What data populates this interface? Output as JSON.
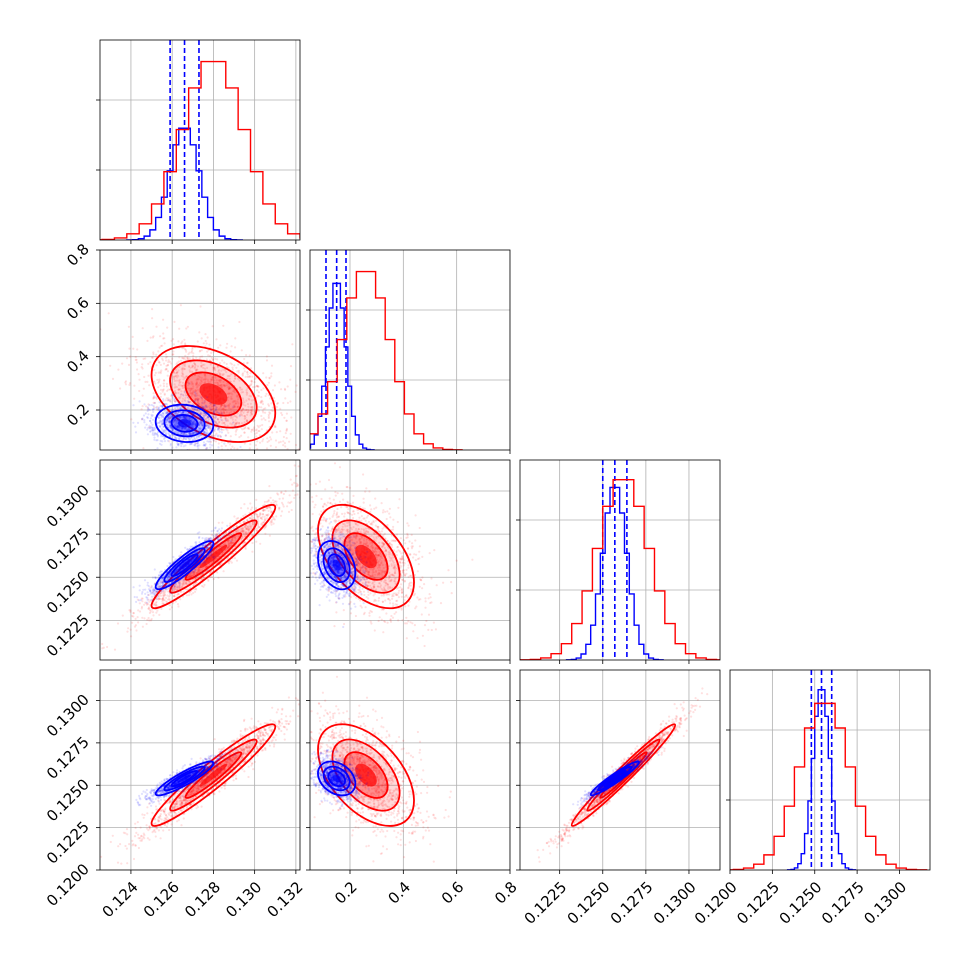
{
  "colors": {
    "series_a": "#0000ff",
    "series_b": "#ff0000"
  },
  "chart_data": {
    "type": "corner",
    "grid": true,
    "parameters": [
      {
        "range": [
          0.1225,
          0.1322
        ],
        "ticks": [
          0.124,
          0.126,
          0.128,
          0.13,
          0.132
        ],
        "tick_labels": [
          "0.124",
          "0.126",
          "0.128",
          "0.130",
          "0.132"
        ]
      },
      {
        "range": [
          0.05,
          0.8
        ],
        "ticks": [
          0.2,
          0.4,
          0.6,
          0.8
        ],
        "tick_labels": [
          "0.2",
          "0.4",
          "0.6",
          "0.8"
        ]
      },
      {
        "range": [
          0.1202,
          0.1318
        ],
        "ticks": [
          0.1225,
          0.125,
          0.1275,
          0.13
        ],
        "tick_labels": [
          "0.1225",
          "0.1250",
          "0.1275",
          "0.1300"
        ]
      },
      {
        "range": [
          0.12,
          0.1318
        ],
        "ticks": [
          0.12,
          0.1225,
          0.125,
          0.1275,
          0.13
        ],
        "tick_labels": [
          "0.1200",
          "0.1225",
          "0.1250",
          "0.1275",
          "0.1300"
        ]
      }
    ],
    "series": [
      {
        "color": "#0000ff",
        "mean": [
          0.1266,
          0.15,
          0.1257,
          0.1254
        ],
        "std": [
          0.0007,
          0.035,
          0.0007,
          0.0005
        ],
        "corr": [
          [
            1,
            -0.1,
            0.9,
            0.9
          ],
          [
            -0.1,
            1,
            -0.3,
            -0.3
          ],
          [
            0.9,
            -0.3,
            1,
            0.95
          ],
          [
            0.9,
            -0.3,
            0.95,
            1
          ]
        ],
        "quantiles": [
          [
            0.1259,
            0.1266,
            0.1273
          ],
          [
            0.11,
            0.15,
            0.185
          ],
          [
            0.125,
            0.1257,
            0.1264
          ],
          [
            0.1248,
            0.1254,
            0.126
          ]
        ],
        "hist_peak": [
          0.57,
          0.85,
          0.88,
          0.92
        ]
      },
      {
        "color": "#ff0000",
        "mean": [
          0.128,
          0.26,
          0.1262,
          0.1256
        ],
        "std": [
          0.0015,
          0.09,
          0.0015,
          0.0015
        ],
        "corr": [
          [
            1,
            -0.4,
            0.95,
            0.95
          ],
          [
            -0.4,
            1,
            -0.5,
            -0.5
          ],
          [
            0.95,
            -0.5,
            1,
            0.98
          ],
          [
            0.95,
            -0.5,
            0.98,
            1
          ]
        ],
        "hist_peak": [
          0.91,
          0.91,
          0.92,
          0.85
        ]
      }
    ]
  }
}
